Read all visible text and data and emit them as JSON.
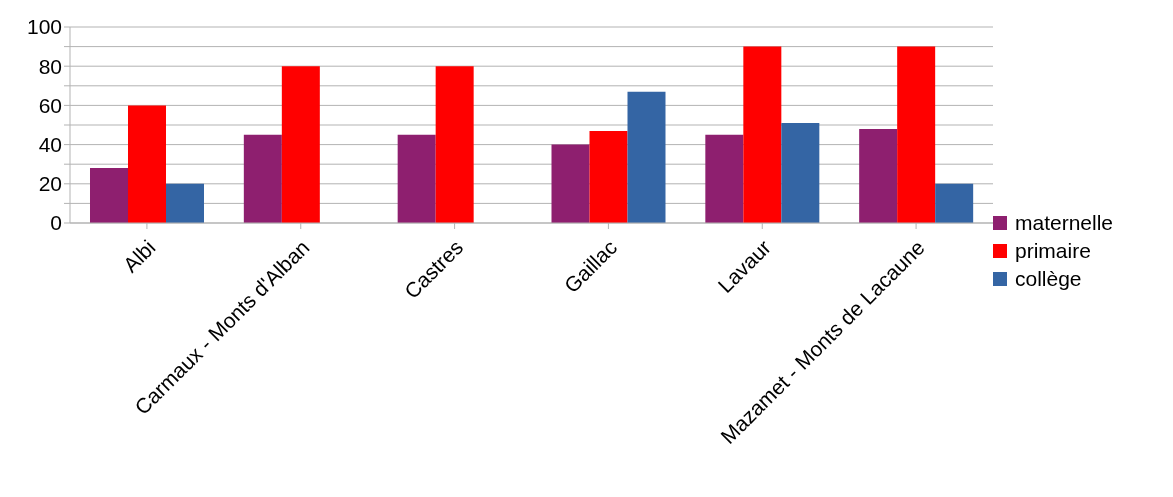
{
  "chart_data": {
    "type": "bar",
    "categories": [
      "Albi",
      "Carmaux - Monts d'Alban",
      "Castres",
      "Gaillac",
      "Lavaur",
      "Mazamet - Monts de Lacaune"
    ],
    "series": [
      {
        "name": "maternelle",
        "color": "#8e1f6f",
        "values": [
          28,
          45,
          45,
          40,
          45,
          48
        ]
      },
      {
        "name": "primaire",
        "color": "#ff0000",
        "values": [
          60,
          80,
          80,
          47,
          90,
          90
        ]
      },
      {
        "name": "collège",
        "color": "#3465a4",
        "values": [
          20,
          null,
          null,
          67,
          51,
          20
        ]
      }
    ],
    "ylim": [
      0,
      100
    ],
    "yticks": [
      0,
      {
        "value": 10,
        "label": null
      },
      20,
      {
        "value": 30,
        "label": null
      },
      40,
      {
        "value": 50,
        "label": null
      },
      60,
      {
        "value": 70,
        "label": null
      },
      80,
      {
        "value": 90,
        "label": null
      },
      100
    ],
    "grid": "y",
    "legend": "right"
  }
}
